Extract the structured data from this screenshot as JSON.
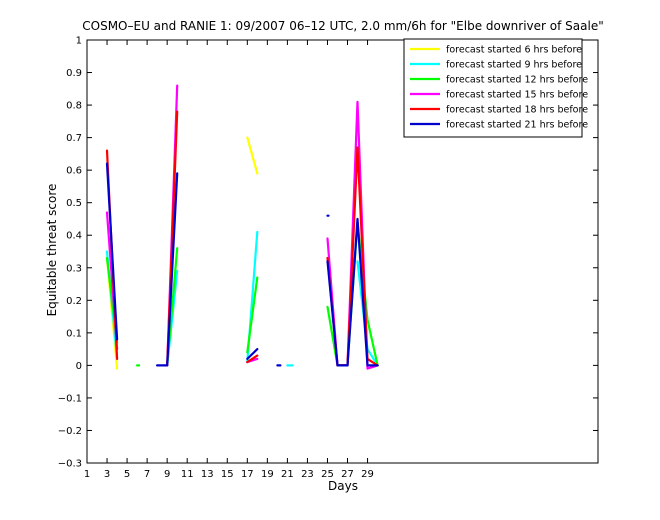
{
  "chart_data": {
    "type": "line",
    "title": "COSMO–EU and RANIE 1: 09/2007 06–12 UTC, 2.0 mm/6h for \"Elbe downriver of Saale\"",
    "xlabel": "Days",
    "ylabel": "Equitable threat score",
    "xlim": [
      1,
      52
    ],
    "ylim": [
      -0.3,
      1
    ],
    "xticks": [
      1,
      3,
      5,
      7,
      9,
      11,
      13,
      15,
      17,
      19,
      21,
      23,
      25,
      27,
      29
    ],
    "yticks": [
      -0.3,
      -0.2,
      -0.1,
      0,
      0.1,
      0.2,
      0.3,
      0.4,
      0.5,
      0.6,
      0.7,
      0.8,
      0.9,
      1
    ],
    "ytick_labels": [
      "−0.3",
      "−0.2",
      "−0.1",
      "0",
      "0.1",
      "0.2",
      "0.3",
      "0.4",
      "0.5",
      "0.6",
      "0.7",
      "0.8",
      "0.9",
      "1"
    ],
    "grid": false,
    "legend_position": "top-right",
    "series": [
      {
        "name": "forecast started 6 hrs before",
        "color": "#ffff00",
        "segments": [
          [
            [
              3,
              0.33
            ],
            [
              4,
              -0.01
            ]
          ],
          [
            [
              17,
              0.7
            ],
            [
              18,
              0.59
            ]
          ]
        ]
      },
      {
        "name": "forecast started 9 hrs before",
        "color": "#00ffff",
        "segments": [
          [
            [
              3,
              0.35
            ],
            [
              4,
              0.02
            ]
          ],
          [
            [
              9,
              0.0
            ],
            [
              10,
              0.29
            ]
          ],
          [
            [
              17,
              0.01
            ],
            [
              18,
              0.41
            ]
          ],
          [
            [
              21,
              0.0
            ],
            [
              21.5,
              0.0
            ]
          ],
          [
            [
              28,
              0.32
            ],
            [
              29,
              0.05
            ],
            [
              30,
              0.0
            ]
          ]
        ]
      },
      {
        "name": "forecast started 12 hrs before",
        "color": "#00ff00",
        "segments": [
          [
            [
              3,
              0.33
            ],
            [
              4,
              0.07
            ]
          ],
          [
            [
              6,
              0.0
            ],
            [
              6.2,
              0.0
            ]
          ],
          [
            [
              9,
              0.0
            ],
            [
              10,
              0.36
            ]
          ],
          [
            [
              17,
              0.04
            ],
            [
              18,
              0.27
            ]
          ],
          [
            [
              25,
              0.18
            ],
            [
              26,
              0.0
            ],
            [
              27,
              0.0
            ],
            [
              28,
              0.44
            ],
            [
              29,
              0.14
            ],
            [
              30,
              0.0
            ]
          ]
        ]
      },
      {
        "name": "forecast started 15 hrs before",
        "color": "#ff00ff",
        "segments": [
          [
            [
              3,
              0.47
            ],
            [
              4,
              0.05
            ]
          ],
          [
            [
              9,
              0.0
            ],
            [
              10,
              0.86
            ]
          ],
          [
            [
              17,
              0.01
            ],
            [
              18,
              0.02
            ]
          ],
          [
            [
              25,
              0.39
            ],
            [
              26,
              0.0
            ],
            [
              27,
              0.0
            ],
            [
              28,
              0.81
            ],
            [
              29,
              -0.01
            ],
            [
              30,
              0.0
            ]
          ]
        ]
      },
      {
        "name": "forecast started 18 hrs before",
        "color": "#ff0000",
        "segments": [
          [
            [
              3,
              0.66
            ],
            [
              4,
              0.02
            ]
          ],
          [
            [
              9,
              0.0
            ],
            [
              10,
              0.78
            ]
          ],
          [
            [
              17,
              0.01
            ],
            [
              18,
              0.03
            ]
          ],
          [
            [
              25,
              0.33
            ],
            [
              26,
              0.0
            ],
            [
              27,
              0.0
            ],
            [
              28,
              0.67
            ],
            [
              29,
              0.02
            ],
            [
              30,
              0.0
            ]
          ]
        ]
      },
      {
        "name": "forecast started 21 hrs before",
        "color": "#0000cc",
        "segments": [
          [
            [
              3,
              0.62
            ],
            [
              4,
              0.08
            ]
          ],
          [
            [
              8,
              0.0
            ],
            [
              9,
              0.0
            ],
            [
              10,
              0.59
            ]
          ],
          [
            [
              17,
              0.02
            ],
            [
              18,
              0.05
            ]
          ],
          [
            [
              20,
              0.0
            ],
            [
              20.3,
              0.0
            ]
          ],
          [
            [
              25,
              0.46
            ],
            [
              25.1,
              0.46
            ]
          ],
          [
            [
              25,
              0.32
            ],
            [
              26,
              0.0
            ],
            [
              27,
              0.0
            ],
            [
              28,
              0.45
            ],
            [
              29,
              0.0
            ],
            [
              30,
              0.0
            ]
          ]
        ]
      }
    ]
  }
}
